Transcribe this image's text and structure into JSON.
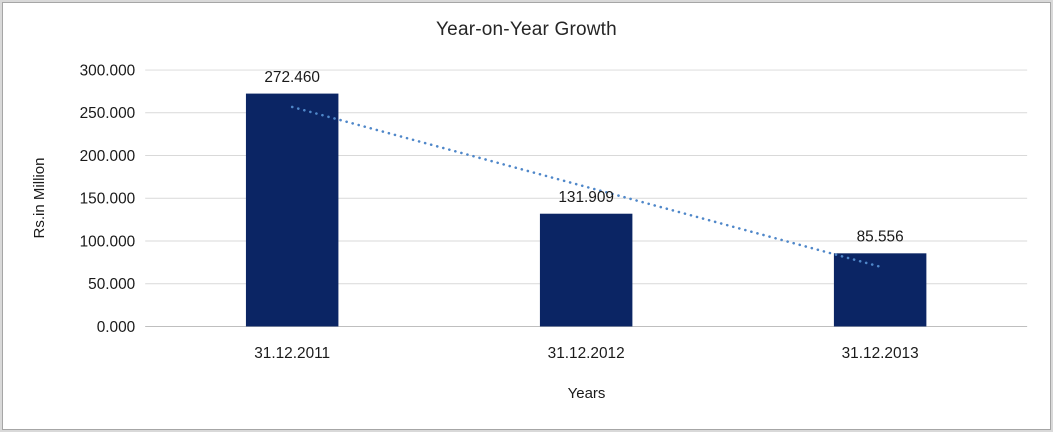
{
  "window": {
    "background": "#ffffff",
    "border_outer_color": "#d9d9d9",
    "border_inner_color": "#a6a6a6"
  },
  "chart_data": {
    "type": "bar",
    "title": "Year-on-Year Growth",
    "xlabel": "Years",
    "ylabel": "Rs.in Million",
    "categories": [
      "31.12.2011",
      "31.12.2012",
      "31.12.2013"
    ],
    "values": [
      272.46,
      131.909,
      85.556
    ],
    "value_labels": [
      "272.460",
      "131.909",
      "85.556"
    ],
    "ylim": [
      0,
      300
    ],
    "ytick_step": 50,
    "ytick_labels": [
      "0.000",
      "50.000",
      "100.000",
      "150.000",
      "200.000",
      "250.000",
      "300.000"
    ],
    "grid": "horizontal",
    "legend": "none",
    "trendline": {
      "type": "linear",
      "style": "dotted",
      "start_value": 256.8,
      "end_value": 69.9
    },
    "colors": {
      "bar": "#0b2564",
      "trendline": "#4f87c9",
      "gridline": "#d9d9d9",
      "axis_line": "#bfbfbf",
      "text": "#1a1a1a"
    }
  }
}
